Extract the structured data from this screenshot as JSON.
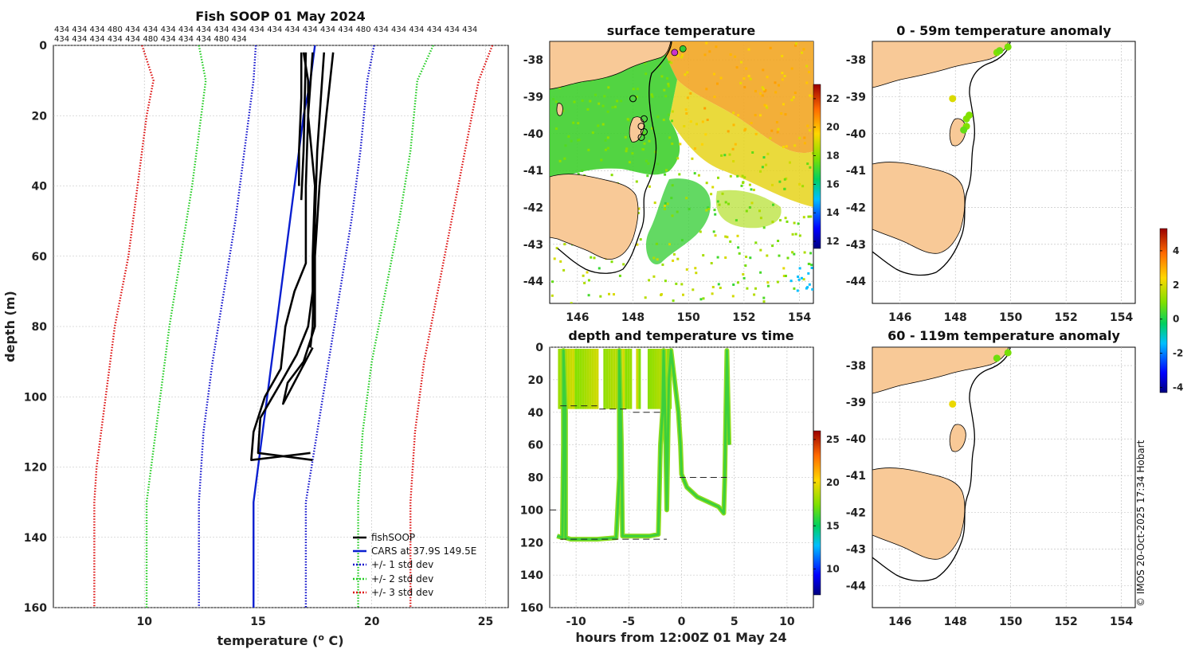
{
  "chart_data": [
    {
      "type": "line",
      "title": "Fish SOOP 01 May 2024",
      "top_counts_row1": "434 434 434 480 434 434 434 434 434 434 434 434 434 434 434 434 434 480 434 434 434 434 434 434",
      "top_counts_row2": "434 434 434 434 434 480 434 434 434 480 434",
      "xlabel": "temperature (",
      "xlabel_sup": "o",
      "xlabel_end": " C)",
      "ylabel": "depth (m)",
      "xlim": [
        6,
        26
      ],
      "ylim": [
        0,
        160
      ],
      "xticks": [
        "10",
        "15",
        "20",
        "25"
      ],
      "yticks": [
        "0",
        "20",
        "40",
        "60",
        "80",
        "100",
        "120",
        "140",
        "160"
      ],
      "legend": [
        "fishSOOP",
        "CARS at 37.9S 149.5E",
        "+/- 1 std dev",
        "+/- 2 std dev",
        "+/- 3 std dev"
      ],
      "series": [
        {
          "name": "CARS at 37.9S 149.5E",
          "color": "#0a1fd0",
          "points": [
            [
              17.5,
              0
            ],
            [
              17.3,
              10
            ],
            [
              17.0,
              20
            ],
            [
              16.6,
              40
            ],
            [
              16.2,
              60
            ],
            [
              15.8,
              80
            ],
            [
              15.4,
              100
            ],
            [
              15.0,
              120
            ],
            [
              14.8,
              130
            ],
            [
              14.8,
              160
            ]
          ]
        },
        {
          "name": "+/- 1 std dev low",
          "color": "#1111cc",
          "points": [
            [
              14.9,
              0
            ],
            [
              14.8,
              10
            ],
            [
              14.4,
              30
            ],
            [
              14.0,
              50
            ],
            [
              13.5,
              70
            ],
            [
              13.0,
              90
            ],
            [
              12.6,
              110
            ],
            [
              12.4,
              130
            ],
            [
              12.4,
              160
            ]
          ]
        },
        {
          "name": "+/- 1 std dev high",
          "color": "#1111cc",
          "points": [
            [
              20.1,
              0
            ],
            [
              19.8,
              10
            ],
            [
              19.5,
              30
            ],
            [
              19.1,
              50
            ],
            [
              18.6,
              70
            ],
            [
              18.1,
              90
            ],
            [
              17.6,
              110
            ],
            [
              17.1,
              130
            ],
            [
              17.1,
              160
            ]
          ]
        },
        {
          "name": "+/- 2 std dev low",
          "color": "#22cc22",
          "points": [
            [
              12.4,
              0
            ],
            [
              12.7,
              10
            ],
            [
              12.5,
              20
            ],
            [
              12.1,
              40
            ],
            [
              11.6,
              60
            ],
            [
              11.1,
              80
            ],
            [
              10.7,
              100
            ],
            [
              10.3,
              120
            ],
            [
              10.1,
              130
            ],
            [
              10.1,
              160
            ]
          ]
        },
        {
          "name": "+/- 2 std dev high",
          "color": "#22cc22",
          "points": [
            [
              22.7,
              0
            ],
            [
              22.0,
              10
            ],
            [
              21.7,
              30
            ],
            [
              21.2,
              50
            ],
            [
              20.6,
              70
            ],
            [
              20.0,
              90
            ],
            [
              19.6,
              110
            ],
            [
              19.4,
              130
            ],
            [
              19.4,
              160
            ]
          ]
        },
        {
          "name": "+/- 3 std dev low",
          "color": "#dd1111",
          "points": [
            [
              9.9,
              0
            ],
            [
              10.4,
              10
            ],
            [
              10.1,
              20
            ],
            [
              9.7,
              40
            ],
            [
              9.3,
              60
            ],
            [
              8.7,
              80
            ],
            [
              8.3,
              100
            ],
            [
              7.9,
              120
            ],
            [
              7.8,
              130
            ],
            [
              7.8,
              160
            ]
          ]
        },
        {
          "name": "+/- 3 std dev high",
          "color": "#dd1111",
          "points": [
            [
              25.3,
              0
            ],
            [
              24.7,
              10
            ],
            [
              24.1,
              30
            ],
            [
              23.5,
              50
            ],
            [
              22.9,
              70
            ],
            [
              22.3,
              90
            ],
            [
              21.9,
              110
            ],
            [
              21.7,
              130
            ],
            [
              21.7,
              160
            ]
          ]
        },
        {
          "name": "fishSOOP cast 1",
          "color": "#000000",
          "points": [
            [
              17.4,
              2
            ],
            [
              17.2,
              20
            ],
            [
              17.1,
              40
            ],
            [
              17.1,
              62
            ],
            [
              16.6,
              70
            ],
            [
              16.2,
              80
            ],
            [
              16.0,
              92
            ],
            [
              15.3,
              100
            ],
            [
              14.8,
              110
            ],
            [
              14.7,
              118
            ],
            [
              16.0,
              117
            ],
            [
              17.3,
              116
            ]
          ]
        },
        {
          "name": "fishSOOP cast 2",
          "color": "#000000",
          "points": [
            [
              17.0,
              2
            ],
            [
              17.2,
              10
            ],
            [
              17.2,
              20
            ],
            [
              17.5,
              40
            ],
            [
              17.4,
              60
            ],
            [
              17.4,
              70
            ],
            [
              17.2,
              80
            ],
            [
              16.7,
              88
            ],
            [
              16.0,
              96
            ],
            [
              15.1,
              106
            ],
            [
              15.0,
              116
            ],
            [
              17.4,
              118
            ]
          ]
        },
        {
          "name": "fishSOOP cast 3",
          "color": "#000000",
          "points": [
            [
              18.3,
              2
            ],
            [
              18.0,
              20
            ],
            [
              17.7,
              40
            ],
            [
              17.5,
              60
            ],
            [
              17.5,
              80
            ],
            [
              17.0,
              90
            ],
            [
              16.3,
              96
            ],
            [
              16.1,
              102
            ],
            [
              17.4,
              86
            ]
          ]
        },
        {
          "name": "fishSOOP cast 4",
          "color": "#000000",
          "points": [
            [
              17.9,
              2
            ],
            [
              17.6,
              30
            ],
            [
              17.5,
              50
            ],
            [
              17.4,
              80
            ],
            [
              17.3,
              86
            ]
          ]
        },
        {
          "name": "fishSOOP cast 5",
          "color": "#000000",
          "points": [
            [
              16.9,
              2
            ],
            [
              16.9,
              15
            ],
            [
              16.8,
              30
            ],
            [
              16.8,
              40
            ]
          ]
        },
        {
          "name": "fishSOOP cast 6",
          "color": "#000000",
          "points": [
            [
              17.1,
              2
            ],
            [
              17.0,
              30
            ],
            [
              16.9,
              44
            ]
          ]
        }
      ]
    },
    {
      "type": "heatmap",
      "title": "surface temperature",
      "xlim": [
        145,
        154.5
      ],
      "ylim": [
        -44.6,
        -37.5
      ],
      "xticks": [
        "146",
        "148",
        "150",
        "152",
        "154"
      ],
      "yticks": [
        "-38",
        "-39",
        "-40",
        "-41",
        "-42",
        "-43",
        "-44"
      ],
      "colorbar": {
        "min": 11.5,
        "max": 23,
        "ticks": [
          "12",
          "14",
          "16",
          "18",
          "20",
          "22"
        ]
      }
    },
    {
      "type": "scatter",
      "title": "depth and temperature vs time",
      "xlabel": "hours from 12:00Z 01 May 24",
      "xlim": [
        -12.5,
        12.5
      ],
      "ylim": [
        0,
        160
      ],
      "xticks": [
        "-10",
        "-5",
        "0",
        "5",
        "10"
      ],
      "yticks": [
        "0",
        "20",
        "40",
        "60",
        "80",
        "100",
        "120",
        "140",
        "160"
      ],
      "colorbar": {
        "min": 7,
        "max": 26,
        "ticks": [
          "10",
          "15",
          "20",
          "25"
        ]
      },
      "track": [
        [
          -11.8,
          116
        ],
        [
          -11.3,
          117
        ],
        [
          -11.2,
          60
        ],
        [
          -11.2,
          2
        ],
        [
          -11.0,
          40
        ],
        [
          -11.0,
          117
        ],
        [
          -10.5,
          118
        ],
        [
          -8,
          118
        ],
        [
          -6.2,
          117
        ],
        [
          -5.9,
          80
        ],
        [
          -5.9,
          2
        ],
        [
          -5.7,
          60
        ],
        [
          -5.6,
          116
        ],
        [
          -3,
          116
        ],
        [
          -2.2,
          115
        ],
        [
          -2.0,
          60
        ],
        [
          -1.8,
          40
        ],
        [
          -1.7,
          2
        ],
        [
          -1.5,
          60
        ],
        [
          -1.4,
          100
        ],
        [
          -1.2,
          20
        ],
        [
          -1.0,
          2
        ],
        [
          -0.3,
          40
        ],
        [
          -0.1,
          60
        ],
        [
          0.0,
          78
        ],
        [
          0.5,
          86
        ],
        [
          1.5,
          92
        ],
        [
          2.5,
          95
        ],
        [
          3.5,
          98
        ],
        [
          4.0,
          102
        ],
        [
          4.1,
          80
        ],
        [
          4.2,
          40
        ],
        [
          4.3,
          2
        ],
        [
          4.5,
          60
        ]
      ],
      "bars": [
        [
          -11.6,
          -7.8
        ],
        [
          -7.3,
          -4.8
        ],
        [
          -4.2,
          -3.8
        ],
        [
          -3.1,
          -1.9
        ],
        [
          -1.5,
          -0.9
        ]
      ],
      "dashes": [
        [
          -11.5,
          -8,
          36
        ],
        [
          -7.8,
          -5.2,
          38
        ],
        [
          -4.6,
          -1.8,
          40
        ],
        [
          -12.5,
          -11.6,
          100
        ],
        [
          -11.5,
          -1.4,
          118
        ],
        [
          -0.2,
          4.3,
          80
        ]
      ]
    },
    {
      "type": "scatter",
      "title": "0 - 59m temperature anomaly",
      "xlim": [
        145,
        154.5
      ],
      "ylim": [
        -44.6,
        -37.5
      ],
      "xticks": [
        "146",
        "148",
        "150",
        "152",
        "154"
      ],
      "yticks": [
        "-38",
        "-39",
        "-40",
        "-41",
        "-42",
        "-43",
        "-44"
      ],
      "points": [
        [
          149.5,
          -37.8,
          1.0
        ],
        [
          149.6,
          -37.75,
          0.8
        ],
        [
          149.9,
          -37.65,
          0.9
        ],
        [
          147.9,
          -39.05,
          2.0
        ],
        [
          148.5,
          -39.5,
          1.0
        ],
        [
          148.4,
          -39.6,
          1.0
        ],
        [
          148.4,
          -39.8,
          1.0
        ],
        [
          148.3,
          -39.9,
          0.7
        ]
      ]
    },
    {
      "type": "scatter",
      "title": "60 - 119m temperature anomaly",
      "xlim": [
        145,
        154.5
      ],
      "ylim": [
        -44.6,
        -37.5
      ],
      "xticks": [
        "146",
        "148",
        "150",
        "152",
        "154"
      ],
      "yticks": [
        "-38",
        "-39",
        "-40",
        "-41",
        "-42",
        "-43",
        "-44"
      ],
      "points": [
        [
          149.5,
          -37.8,
          0.8
        ],
        [
          149.9,
          -37.65,
          0.9
        ],
        [
          147.9,
          -39.05,
          2.2
        ]
      ],
      "colorbar": {
        "min": -4.3,
        "max": 5.3,
        "ticks": [
          "4",
          "2",
          "0",
          "-2",
          "-4"
        ]
      }
    }
  ],
  "credit": "© IMOS 20-Oct-2025 17:34 Hobart"
}
